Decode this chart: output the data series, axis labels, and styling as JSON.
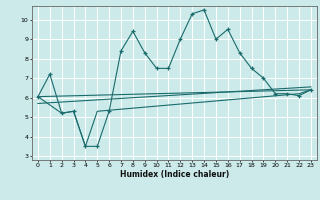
{
  "xlabel": "Humidex (Indice chaleur)",
  "bg_color": "#cceaea",
  "line_color": "#1a6b6b",
  "grid_color": "#ffffff",
  "xlim": [
    -0.5,
    23.5
  ],
  "ylim": [
    2.8,
    10.7
  ],
  "xticks": [
    0,
    1,
    2,
    3,
    4,
    5,
    6,
    7,
    8,
    9,
    10,
    11,
    12,
    13,
    14,
    15,
    16,
    17,
    18,
    19,
    20,
    21,
    22,
    23
  ],
  "yticks": [
    3,
    4,
    5,
    6,
    7,
    8,
    9,
    10
  ],
  "line1_x": [
    0,
    1,
    2,
    3,
    4,
    5,
    6,
    7,
    8,
    9,
    10,
    11,
    12,
    13,
    14,
    15,
    16,
    17,
    18,
    19,
    20,
    21,
    22,
    23
  ],
  "line1_y": [
    6.05,
    7.2,
    5.2,
    5.3,
    3.5,
    3.5,
    5.3,
    8.4,
    9.4,
    8.3,
    7.5,
    7.5,
    9.0,
    10.3,
    10.5,
    9.0,
    9.5,
    8.3,
    7.5,
    7.0,
    6.2,
    6.2,
    6.1,
    6.4
  ],
  "line2_x": [
    0,
    2,
    3,
    4,
    5,
    22,
    23
  ],
  "line2_y": [
    6.05,
    5.2,
    5.3,
    3.5,
    5.3,
    6.2,
    6.4
  ],
  "line3_x": [
    0,
    23
  ],
  "line3_y": [
    5.7,
    6.55
  ],
  "line4_x": [
    0,
    23
  ],
  "line4_y": [
    6.05,
    6.4
  ]
}
